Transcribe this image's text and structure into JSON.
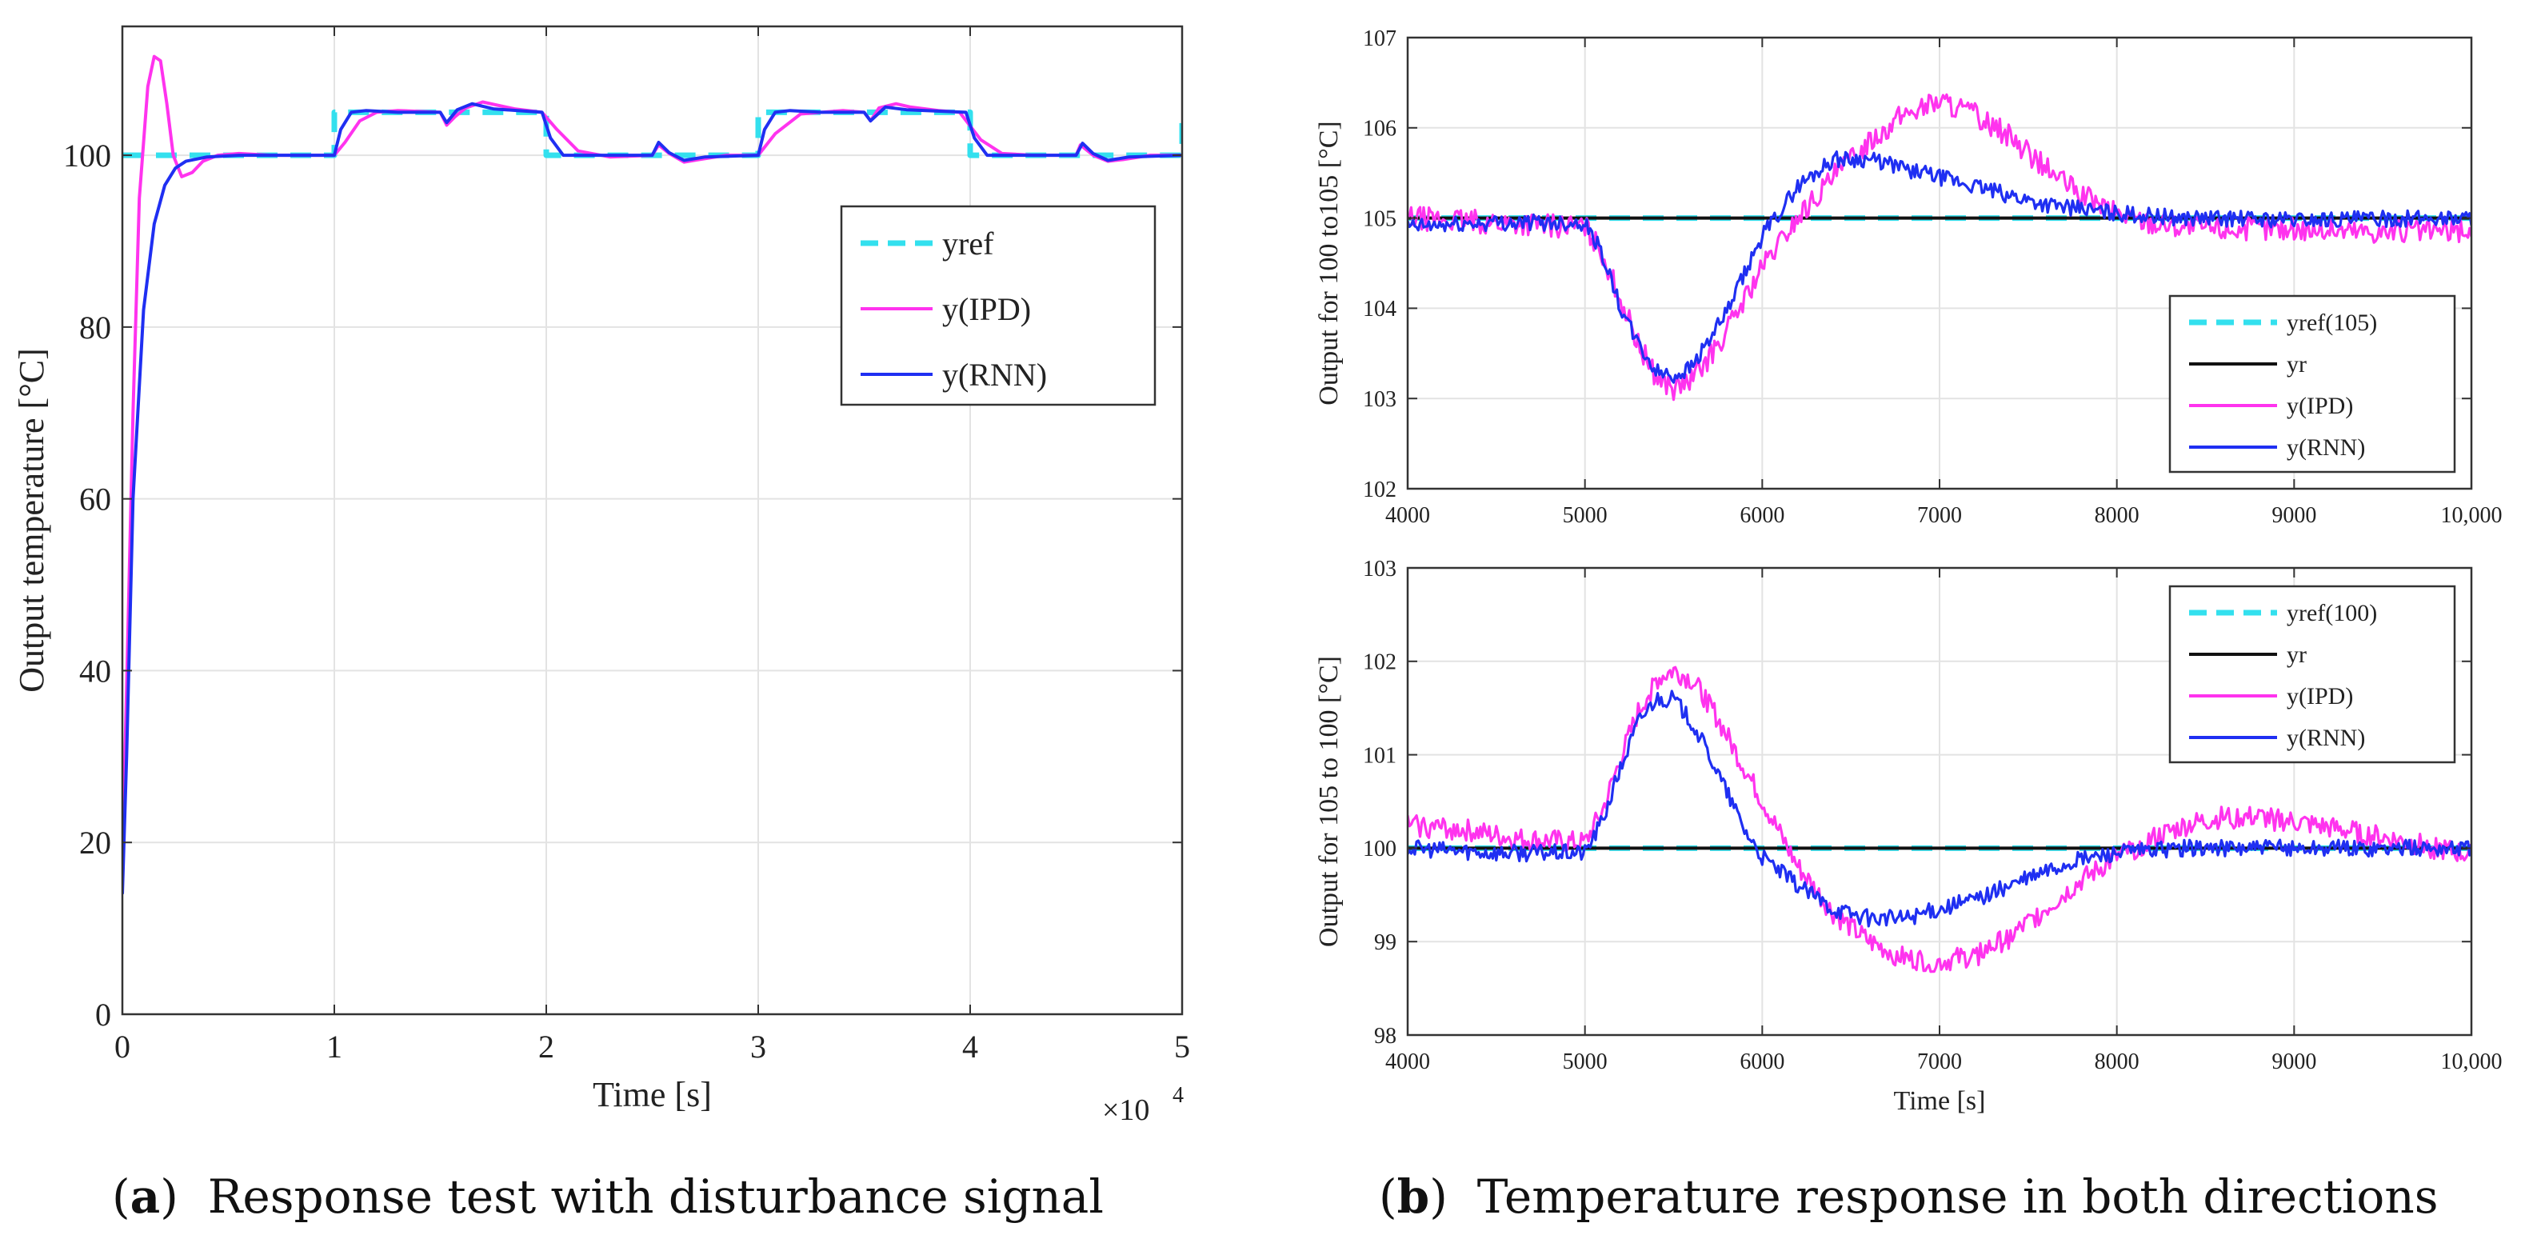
{
  "colors": {
    "yref": "#33e0ee",
    "yr": "#111111",
    "ipd": "#ff33ee",
    "rnn": "#1f2ff2",
    "grid": "#e3e3e3",
    "axis": "#333333"
  },
  "captions": {
    "a": {
      "letter": "a",
      "text": "Response test with disturbance signal"
    },
    "b": {
      "letter": "b",
      "text": "Temperature response in both directions"
    }
  },
  "chart_data": [
    {
      "id": "a",
      "type": "line",
      "xlabel": "Time [s]",
      "ylabel": "Output temperature [°C]",
      "x_multiplier": "×10",
      "x_multiplier_exp": "4",
      "xlim": [
        0,
        5
      ],
      "ylim": [
        0,
        115
      ],
      "xticks": [
        0,
        1,
        2,
        3,
        4,
        5
      ],
      "yticks": [
        0,
        20,
        40,
        60,
        80,
        100
      ],
      "xtick_labels": [
        "0",
        "1",
        "2",
        "3",
        "4",
        "5"
      ],
      "ytick_labels": [
        "0",
        "20",
        "40",
        "60",
        "80",
        "100"
      ],
      "legend_position": "upper-right",
      "series": [
        {
          "name": "yref",
          "color_key": "yref",
          "style": "dashed",
          "x": [
            0,
            1,
            1,
            2,
            2,
            3,
            3,
            4,
            4,
            5,
            5
          ],
          "y": [
            100,
            100,
            105,
            105,
            100,
            100,
            105,
            105,
            100,
            100,
            105
          ]
        },
        {
          "name": "y(IPD)",
          "color_key": "ipd",
          "style": "solid",
          "x": [
            0,
            0.02,
            0.05,
            0.08,
            0.12,
            0.15,
            0.18,
            0.21,
            0.24,
            0.28,
            0.33,
            0.38,
            0.45,
            0.55,
            0.7,
            1.0,
            1.05,
            1.12,
            1.2,
            1.3,
            1.5,
            1.53,
            1.57,
            1.62,
            1.7,
            1.85,
            1.98,
            2.05,
            2.15,
            2.3,
            2.5,
            2.53,
            2.58,
            2.65,
            2.72,
            2.85,
            3.0,
            3.08,
            3.2,
            3.4,
            3.5,
            3.53,
            3.57,
            3.65,
            3.72,
            3.85,
            3.95,
            4.05,
            4.15,
            4.3,
            4.5,
            4.52,
            4.58,
            4.65,
            4.72,
            4.85,
            5.0
          ],
          "y": [
            18,
            38,
            70,
            95,
            108,
            111.5,
            111,
            106,
            100,
            97.5,
            98,
            99.3,
            100,
            100.2,
            100,
            100,
            101.5,
            104,
            105,
            105.2,
            105,
            103.5,
            104.5,
            105.5,
            106.2,
            105.4,
            105,
            103,
            100.5,
            99.8,
            100,
            101.2,
            100.2,
            99.2,
            99.5,
            100,
            100,
            102.5,
            104.8,
            105.2,
            105,
            104,
            105.5,
            106,
            105.6,
            105.2,
            105,
            101.8,
            100.2,
            100,
            100,
            101.2,
            100,
            99.3,
            99.5,
            100,
            100
          ]
        },
        {
          "name": "y(RNN)",
          "color_key": "rnn",
          "style": "solid",
          "x": [
            0,
            0.02,
            0.05,
            0.1,
            0.15,
            0.2,
            0.25,
            0.3,
            0.4,
            0.55,
            0.7,
            1.0,
            1.03,
            1.08,
            1.15,
            1.3,
            1.5,
            1.53,
            1.58,
            1.65,
            1.75,
            1.98,
            2.02,
            2.08,
            2.2,
            2.5,
            2.53,
            2.58,
            2.65,
            2.75,
            3.0,
            3.03,
            3.08,
            3.15,
            3.3,
            3.5,
            3.53,
            3.6,
            3.7,
            3.98,
            4.02,
            4.08,
            4.2,
            4.5,
            4.53,
            4.58,
            4.65,
            4.75,
            5.0
          ],
          "y": [
            14,
            30,
            60,
            82,
            92,
            96.5,
            98.5,
            99.3,
            99.8,
            100,
            100,
            100,
            103,
            105,
            105.2,
            105,
            105,
            103.8,
            105.3,
            106,
            105.4,
            105,
            102,
            100,
            100,
            100,
            101.5,
            100.3,
            99.4,
            99.8,
            100,
            103,
            105,
            105.2,
            105,
            105,
            104,
            105.6,
            105.3,
            105,
            102,
            100,
            100,
            100,
            101.4,
            100.2,
            99.4,
            99.8,
            100
          ]
        }
      ]
    },
    {
      "id": "b-top",
      "type": "line",
      "xlabel": "",
      "ylabel": "Output for 100 to105 [°C]",
      "xlim": [
        4000,
        10000
      ],
      "ylim": [
        102,
        107
      ],
      "xticks": [
        4000,
        5000,
        6000,
        7000,
        8000,
        9000,
        10000
      ],
      "yticks": [
        102,
        103,
        104,
        105,
        106,
        107
      ],
      "xtick_labels": [
        "4000",
        "5000",
        "6000",
        "7000",
        "8000",
        "9000",
        "10,000"
      ],
      "ytick_labels": [
        "102",
        "103",
        "104",
        "105",
        "106",
        "107"
      ],
      "legend_position": "lower-right",
      "series": [
        {
          "name": "yref(105)",
          "color_key": "yref",
          "style": "dashed",
          "x": [
            4000,
            10000
          ],
          "y": [
            105,
            105
          ]
        },
        {
          "name": "yr",
          "color_key": "yr",
          "style": "solid",
          "x": [
            4000,
            10000
          ],
          "y": [
            105,
            105
          ]
        },
        {
          "name": "y(IPD)",
          "color_key": "ipd",
          "style": "solid",
          "noise": 0.13,
          "x": [
            4000,
            4500,
            5000,
            5100,
            5200,
            5300,
            5400,
            5500,
            5600,
            5700,
            5800,
            5900,
            6000,
            6200,
            6400,
            6600,
            6800,
            7000,
            7200,
            7400,
            7600,
            7800,
            8000,
            8200,
            8400,
            8600,
            9000,
            9500,
            10000
          ],
          "y": [
            105.0,
            104.95,
            104.9,
            104.6,
            104.1,
            103.6,
            103.25,
            103.1,
            103.2,
            103.45,
            103.75,
            104.1,
            104.45,
            105.0,
            105.45,
            105.85,
            106.15,
            106.3,
            106.15,
            105.9,
            105.55,
            105.25,
            105.05,
            104.95,
            104.9,
            104.88,
            104.88,
            104.85,
            104.85
          ]
        },
        {
          "name": "y(RNN)",
          "color_key": "rnn",
          "style": "solid",
          "noise": 0.09,
          "x": [
            4000,
            4500,
            5000,
            5100,
            5200,
            5300,
            5400,
            5500,
            5600,
            5700,
            5800,
            6000,
            6200,
            6400,
            6600,
            6800,
            7000,
            7200,
            7400,
            7600,
            8000,
            8400,
            9000,
            10000
          ],
          "y": [
            104.9,
            104.95,
            104.95,
            104.6,
            104.0,
            103.6,
            103.3,
            103.25,
            103.35,
            103.65,
            103.95,
            104.8,
            105.35,
            105.65,
            105.65,
            105.55,
            105.45,
            105.35,
            105.25,
            105.15,
            105.05,
            105.0,
            104.98,
            105.0
          ]
        }
      ]
    },
    {
      "id": "b-bottom",
      "type": "line",
      "xlabel": "Time [s]",
      "ylabel": "Output for 105 to 100 [°C]",
      "xlim": [
        4000,
        10000
      ],
      "ylim": [
        98,
        103
      ],
      "xticks": [
        4000,
        5000,
        6000,
        7000,
        8000,
        9000,
        10000
      ],
      "yticks": [
        98,
        99,
        100,
        101,
        102,
        103
      ],
      "xtick_labels": [
        "4000",
        "5000",
        "6000",
        "7000",
        "8000",
        "9000",
        "10,000"
      ],
      "ytick_labels": [
        "98",
        "99",
        "100",
        "101",
        "102",
        "103"
      ],
      "legend_position": "upper-right",
      "series": [
        {
          "name": "yref(100)",
          "color_key": "yref",
          "style": "dashed",
          "x": [
            4000,
            10000
          ],
          "y": [
            100,
            100
          ]
        },
        {
          "name": "yr",
          "color_key": "yr",
          "style": "solid",
          "x": [
            4000,
            10000
          ],
          "y": [
            100,
            100
          ]
        },
        {
          "name": "y(IPD)",
          "color_key": "ipd",
          "style": "solid",
          "noise": 0.12,
          "x": [
            4000,
            4300,
            4600,
            5000,
            5100,
            5200,
            5300,
            5400,
            5500,
            5600,
            5700,
            5800,
            5900,
            6000,
            6200,
            6400,
            6600,
            6800,
            7000,
            7200,
            7400,
            7600,
            7800,
            8000,
            8200,
            8400,
            8600,
            8800,
            9000,
            9400,
            9800,
            10000
          ],
          "y": [
            100.25,
            100.2,
            100.1,
            100.05,
            100.4,
            100.95,
            101.45,
            101.8,
            101.9,
            101.8,
            101.55,
            101.2,
            100.85,
            100.5,
            99.8,
            99.3,
            99.0,
            98.82,
            98.78,
            98.85,
            99.05,
            99.35,
            99.65,
            99.9,
            100.1,
            100.25,
            100.33,
            100.33,
            100.28,
            100.15,
            100.0,
            99.92
          ]
        },
        {
          "name": "y(RNN)",
          "color_key": "rnn",
          "style": "solid",
          "noise": 0.09,
          "x": [
            4000,
            4500,
            5000,
            5100,
            5200,
            5300,
            5400,
            5500,
            5600,
            5700,
            5800,
            5900,
            6000,
            6200,
            6400,
            6600,
            6800,
            7000,
            7200,
            7400,
            7600,
            7800,
            8000,
            8400,
            9000,
            10000
          ],
          "y": [
            100.0,
            99.95,
            99.95,
            100.3,
            100.85,
            101.35,
            101.6,
            101.6,
            101.35,
            101.0,
            100.6,
            100.2,
            99.9,
            99.6,
            99.35,
            99.25,
            99.25,
            99.35,
            99.45,
            99.6,
            99.75,
            99.88,
            99.95,
            100.0,
            100.0,
            100.0
          ]
        }
      ]
    }
  ]
}
